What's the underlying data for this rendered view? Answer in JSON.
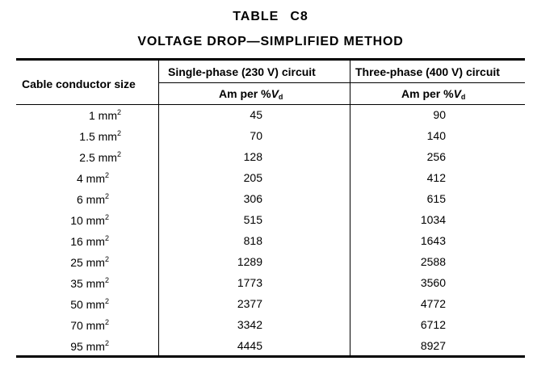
{
  "title": {
    "line1_a": "TABLE",
    "line1_b": "C8",
    "line2": "VOLTAGE DROP—SIMPLIFIED METHOD"
  },
  "headers": {
    "size": "Cable conductor size",
    "single": "Single-phase (230 V) circuit",
    "three": "Three-phase (400 V) circuit",
    "unit_prefix": "Am per %",
    "unit_var": "V",
    "unit_sub": "d"
  },
  "rows": [
    {
      "size": "1 mm",
      "sup": "2",
      "single": "45",
      "three": "90"
    },
    {
      "size": "1.5 mm",
      "sup": "2",
      "single": "70",
      "three": "140"
    },
    {
      "size": "2.5 mm",
      "sup": "2",
      "single": "128",
      "three": "256"
    },
    {
      "size": "4 mm",
      "sup": "2",
      "single": "205",
      "three": "412"
    },
    {
      "size": "6 mm",
      "sup": "2",
      "single": "306",
      "three": "615"
    },
    {
      "size": "10 mm",
      "sup": "2",
      "single": "515",
      "three": "1034"
    },
    {
      "size": "16 mm",
      "sup": "2",
      "single": "818",
      "three": "1643"
    },
    {
      "size": "25 mm",
      "sup": "2",
      "single": "1289",
      "three": "2588"
    },
    {
      "size": "35 mm",
      "sup": "2",
      "single": "1773",
      "three": "3560"
    },
    {
      "size": "50 mm",
      "sup": "2",
      "single": "2377",
      "three": "4772"
    },
    {
      "size": "70 mm",
      "sup": "2",
      "single": "3342",
      "three": "6712"
    },
    {
      "size": "95 mm",
      "sup": "2",
      "single": "4445",
      "three": "8927"
    }
  ]
}
